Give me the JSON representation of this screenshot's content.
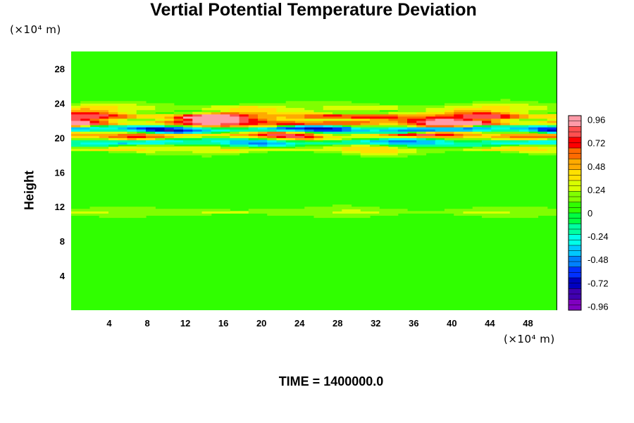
{
  "chart_data": {
    "type": "heatmap",
    "title": "Vertial Potential Temperature Deviation",
    "ylabel": "Height",
    "x_unit_label": "(×10⁴ m)",
    "y_unit_label": "(×10⁴ m)",
    "footer": "TIME = 1400000.0",
    "xlim": [
      0,
      51
    ],
    "ylim": [
      0,
      30
    ],
    "x_ticks": [
      "4",
      "8",
      "12",
      "16",
      "20",
      "24",
      "28",
      "32",
      "36",
      "40",
      "44",
      "48"
    ],
    "y_ticks": [
      "4",
      "8",
      "12",
      "16",
      "20",
      "24",
      "28"
    ],
    "colorbar": {
      "range": [
        -1.0,
        1.0
      ],
      "tick_labels": [
        "0.96",
        "0.72",
        "0.48",
        "0.24",
        "0",
        "-0.24",
        "-0.48",
        "-0.72",
        "-0.96"
      ],
      "colors": [
        "#ff9aa8",
        "#ff5050",
        "#ff0000",
        "#ff6a00",
        "#ffaa00",
        "#ffe000",
        "#d8ff00",
        "#80ff00",
        "#30ff00",
        "#00ff40",
        "#00ffa0",
        "#00ffe8",
        "#00c8ff",
        "#0080ff",
        "#0030ff",
        "#0000c0",
        "#4000b0",
        "#8000c0"
      ]
    },
    "background_value": 0.05,
    "bands": [
      {
        "height": 23.5,
        "amplitude": 0.3
      },
      {
        "height": 22.5,
        "amplitude": 0.8
      },
      {
        "height": 21.7,
        "amplitude": 1.0
      },
      {
        "height": 21.0,
        "amplitude": -1.0
      },
      {
        "height": 20.3,
        "amplitude": 0.9
      },
      {
        "height": 19.5,
        "amplitude": -0.6
      },
      {
        "height": 18.7,
        "amplitude": 0.4
      },
      {
        "height": 11.4,
        "amplitude": 0.2
      }
    ]
  }
}
